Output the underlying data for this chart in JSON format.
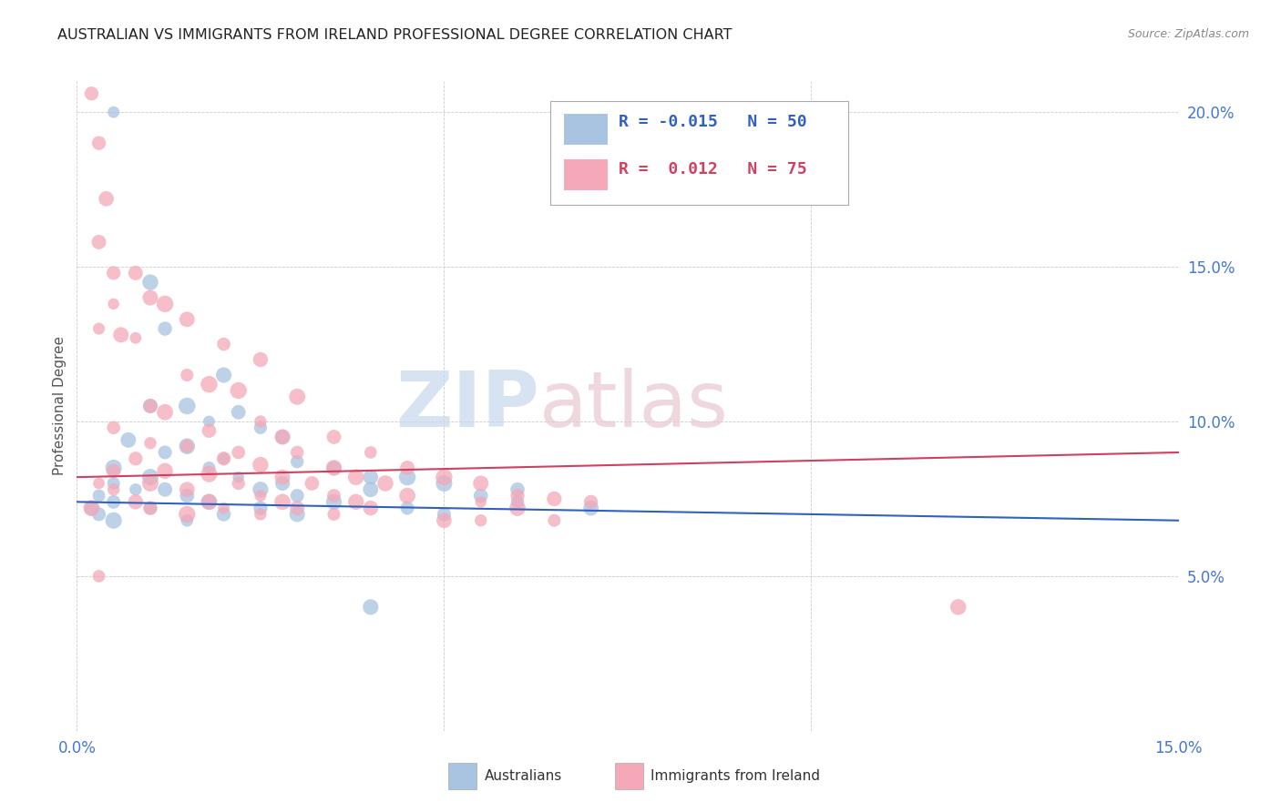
{
  "title": "AUSTRALIAN VS IMMIGRANTS FROM IRELAND PROFESSIONAL DEGREE CORRELATION CHART",
  "source": "Source: ZipAtlas.com",
  "ylabel": "Professional Degree",
  "xmin": 0.0,
  "xmax": 0.15,
  "ymin": 0.0,
  "ymax": 0.21,
  "yticks": [
    0.05,
    0.1,
    0.15,
    0.2
  ],
  "ytick_labels": [
    "5.0%",
    "10.0%",
    "15.0%",
    "20.0%"
  ],
  "xticks": [
    0.0,
    0.05,
    0.1,
    0.15
  ],
  "xtick_labels": [
    "0.0%",
    "",
    "",
    "15.0%"
  ],
  "legend_blue_r": "-0.015",
  "legend_blue_n": "50",
  "legend_pink_r": "0.012",
  "legend_pink_n": "75",
  "blue_color": "#a8c4e0",
  "pink_color": "#f4a8b8",
  "blue_line_color": "#3060c0",
  "pink_line_color": "#d04060",
  "watermark_zip": "ZIP",
  "watermark_atlas": "atlas",
  "background_color": "#ffffff",
  "blue_line_y0": 0.074,
  "blue_line_y1": 0.068,
  "pink_line_y0": 0.082,
  "pink_line_y1": 0.09,
  "blue_points": [
    [
      0.005,
      0.2
    ],
    [
      0.01,
      0.145
    ],
    [
      0.012,
      0.13
    ],
    [
      0.02,
      0.115
    ],
    [
      0.015,
      0.105
    ],
    [
      0.01,
      0.105
    ],
    [
      0.022,
      0.103
    ],
    [
      0.018,
      0.1
    ],
    [
      0.025,
      0.098
    ],
    [
      0.028,
      0.095
    ],
    [
      0.007,
      0.094
    ],
    [
      0.015,
      0.092
    ],
    [
      0.012,
      0.09
    ],
    [
      0.02,
      0.088
    ],
    [
      0.03,
      0.087
    ],
    [
      0.005,
      0.085
    ],
    [
      0.018,
      0.085
    ],
    [
      0.035,
      0.085
    ],
    [
      0.01,
      0.082
    ],
    [
      0.022,
      0.082
    ],
    [
      0.04,
      0.082
    ],
    [
      0.045,
      0.082
    ],
    [
      0.005,
      0.08
    ],
    [
      0.028,
      0.08
    ],
    [
      0.05,
      0.08
    ],
    [
      0.008,
      0.078
    ],
    [
      0.012,
      0.078
    ],
    [
      0.025,
      0.078
    ],
    [
      0.04,
      0.078
    ],
    [
      0.06,
      0.078
    ],
    [
      0.003,
      0.076
    ],
    [
      0.015,
      0.076
    ],
    [
      0.03,
      0.076
    ],
    [
      0.055,
      0.076
    ],
    [
      0.005,
      0.074
    ],
    [
      0.018,
      0.074
    ],
    [
      0.035,
      0.074
    ],
    [
      0.06,
      0.074
    ],
    [
      0.002,
      0.072
    ],
    [
      0.01,
      0.072
    ],
    [
      0.025,
      0.072
    ],
    [
      0.045,
      0.072
    ],
    [
      0.07,
      0.072
    ],
    [
      0.003,
      0.07
    ],
    [
      0.02,
      0.07
    ],
    [
      0.03,
      0.07
    ],
    [
      0.05,
      0.07
    ],
    [
      0.005,
      0.068
    ],
    [
      0.015,
      0.068
    ],
    [
      0.04,
      0.04
    ]
  ],
  "pink_points": [
    [
      0.002,
      0.206
    ],
    [
      0.003,
      0.19
    ],
    [
      0.004,
      0.172
    ],
    [
      0.003,
      0.158
    ],
    [
      0.005,
      0.148
    ],
    [
      0.005,
      0.138
    ],
    [
      0.003,
      0.13
    ],
    [
      0.006,
      0.128
    ],
    [
      0.008,
      0.148
    ],
    [
      0.01,
      0.14
    ],
    [
      0.012,
      0.138
    ],
    [
      0.015,
      0.133
    ],
    [
      0.008,
      0.127
    ],
    [
      0.02,
      0.125
    ],
    [
      0.025,
      0.12
    ],
    [
      0.015,
      0.115
    ],
    [
      0.018,
      0.112
    ],
    [
      0.022,
      0.11
    ],
    [
      0.03,
      0.108
    ],
    [
      0.01,
      0.105
    ],
    [
      0.012,
      0.103
    ],
    [
      0.025,
      0.1
    ],
    [
      0.005,
      0.098
    ],
    [
      0.018,
      0.097
    ],
    [
      0.028,
      0.095
    ],
    [
      0.035,
      0.095
    ],
    [
      0.01,
      0.093
    ],
    [
      0.015,
      0.092
    ],
    [
      0.022,
      0.09
    ],
    [
      0.03,
      0.09
    ],
    [
      0.04,
      0.09
    ],
    [
      0.008,
      0.088
    ],
    [
      0.02,
      0.088
    ],
    [
      0.025,
      0.086
    ],
    [
      0.035,
      0.085
    ],
    [
      0.045,
      0.085
    ],
    [
      0.005,
      0.084
    ],
    [
      0.012,
      0.084
    ],
    [
      0.018,
      0.083
    ],
    [
      0.028,
      0.082
    ],
    [
      0.038,
      0.082
    ],
    [
      0.05,
      0.082
    ],
    [
      0.003,
      0.08
    ],
    [
      0.01,
      0.08
    ],
    [
      0.022,
      0.08
    ],
    [
      0.032,
      0.08
    ],
    [
      0.042,
      0.08
    ],
    [
      0.055,
      0.08
    ],
    [
      0.005,
      0.078
    ],
    [
      0.015,
      0.078
    ],
    [
      0.025,
      0.076
    ],
    [
      0.035,
      0.076
    ],
    [
      0.045,
      0.076
    ],
    [
      0.06,
      0.076
    ],
    [
      0.008,
      0.074
    ],
    [
      0.018,
      0.074
    ],
    [
      0.028,
      0.074
    ],
    [
      0.038,
      0.074
    ],
    [
      0.055,
      0.074
    ],
    [
      0.07,
      0.074
    ],
    [
      0.01,
      0.072
    ],
    [
      0.02,
      0.072
    ],
    [
      0.03,
      0.072
    ],
    [
      0.04,
      0.072
    ],
    [
      0.06,
      0.072
    ],
    [
      0.015,
      0.07
    ],
    [
      0.025,
      0.07
    ],
    [
      0.035,
      0.07
    ],
    [
      0.05,
      0.068
    ],
    [
      0.055,
      0.068
    ],
    [
      0.065,
      0.068
    ],
    [
      0.065,
      0.075
    ],
    [
      0.003,
      0.05
    ],
    [
      0.12,
      0.04
    ],
    [
      0.002,
      0.072
    ]
  ],
  "blue_dot_size": 120,
  "pink_dot_size": 100
}
